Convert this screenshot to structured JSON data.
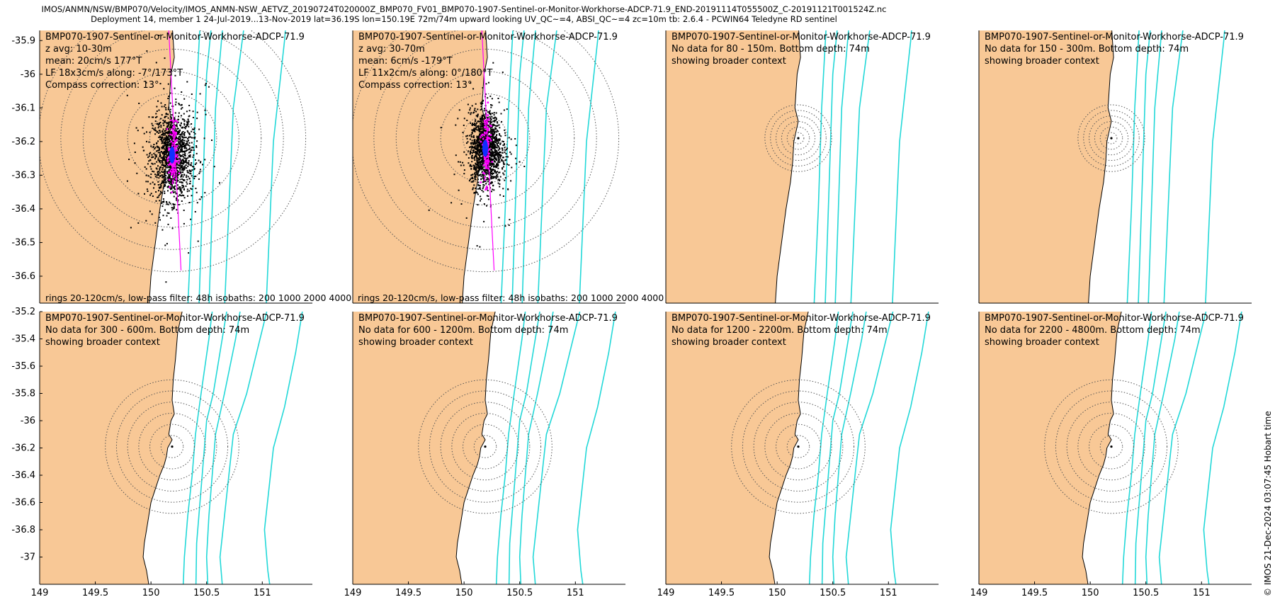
{
  "figure": {
    "title_line1": "IMOS/ANMN/NSW/BMP070/Velocity/IMOS_ANMN-NSW_AETVZ_20190724T020000Z_BMP070_FV01_BMP070-1907-Sentinel-or-Monitor-Workhorse-ADCP-71.9_END-20191114T055500Z_C-20191121T001524Z.nc",
    "title_line2": "Deployment 14, member 1 24-Jul-2019...13-Nov-2019 lat=36.19S lon=150.19E 72m/74m upward looking UV_QC~=4, ABSI_QC~=4 zc=10m tb: 2.6.4 - PCWIN64 Teledyne RD sentinel",
    "footnote": "rings 20-120cm/s, low-pass filter: 48h isobaths: 200 1000 2000 4000",
    "credit": "© IMOS 21-Dec-2024 03:07:45 Hobart time"
  },
  "colors": {
    "land": "#f8c896",
    "sea": "#ffffff",
    "isobath": "#22d8d8",
    "scatter": "#000000",
    "lowpass": "#ff00ff",
    "mean": "#1030ff",
    "ring": "#555555"
  },
  "chart_data": [
    {
      "id": "p1",
      "type": "scatter",
      "xlim": [
        149,
        151.45
      ],
      "ylim": [
        -36.68,
        -35.87
      ],
      "xticks": [],
      "yticks": [
        -35.9,
        -36,
        -36.1,
        -36.2,
        -36.3,
        -36.4,
        -36.5,
        -36.6
      ],
      "center": [
        150.19,
        -36.19
      ],
      "ring_radii_deg": [
        0.2,
        0.4,
        0.6,
        0.8,
        1.0,
        1.2
      ],
      "cloud": {
        "cx": 150.19,
        "cy": -36.24,
        "sx": 0.09,
        "sy": 0.065
      },
      "isobath_scale": 1.0,
      "label_lines": [
        "BMP070-1907-Sentinel-or-Monitor-Workhorse-ADCP-71.9",
        "z avg: 10-30m",
        "mean: 20cm/s 177°T",
        "LF 18x3cm/s along: -7°/173°T",
        "Compass correction: 13°"
      ],
      "has_footnote": true
    },
    {
      "id": "p2",
      "type": "scatter",
      "xlim": [
        149,
        151.45
      ],
      "ylim": [
        -36.68,
        -35.87
      ],
      "xticks": [],
      "yticks": [],
      "center": [
        150.19,
        -36.19
      ],
      "ring_radii_deg": [
        0.2,
        0.4,
        0.6,
        0.8,
        1.0,
        1.2
      ],
      "cloud": {
        "cx": 150.19,
        "cy": -36.22,
        "sx": 0.07,
        "sy": 0.055
      },
      "isobath_scale": 1.0,
      "label_lines": [
        "BMP070-1907-Sentinel-or-Monitor-Workhorse-ADCP-71.9",
        "z avg: 30-70m",
        "mean: 6cm/s -179°T",
        "LF 11x2cm/s along: 0°/180°T",
        "Compass correction: 13°"
      ],
      "has_footnote": true
    },
    {
      "id": "p3",
      "type": "scatter",
      "xlim": [
        149,
        151.45
      ],
      "ylim": [
        -36.68,
        -35.87
      ],
      "xticks": [],
      "yticks": [],
      "center": [
        150.19,
        -36.19
      ],
      "ring_radii_deg": [
        0.05,
        0.1,
        0.15,
        0.2,
        0.25,
        0.3
      ],
      "cloud": null,
      "isobath_scale": 1.0,
      "label_lines": [
        "BMP070-1907-Sentinel-or-Monitor-Workhorse-ADCP-71.9",
        "No data for 80 - 150m. Bottom depth: 74m",
        "showing broader context"
      ],
      "has_footnote": false
    },
    {
      "id": "p4",
      "type": "scatter",
      "xlim": [
        149,
        151.45
      ],
      "ylim": [
        -36.68,
        -35.87
      ],
      "xticks": [],
      "yticks": [],
      "center": [
        150.19,
        -36.19
      ],
      "ring_radii_deg": [
        0.05,
        0.1,
        0.15,
        0.2,
        0.25,
        0.3
      ],
      "cloud": null,
      "isobath_scale": 1.0,
      "label_lines": [
        "BMP070-1907-Sentinel-or-Monitor-Workhorse-ADCP-71.9",
        "No data for 150 - 300m. Bottom depth: 74m",
        "showing broader context"
      ],
      "has_footnote": false
    },
    {
      "id": "p5",
      "type": "scatter",
      "xlim": [
        149,
        151.45
      ],
      "ylim": [
        -37.2,
        -35.2
      ],
      "xticks": [
        149,
        149.5,
        150,
        150.5,
        151
      ],
      "yticks": [
        -35.2,
        -35.4,
        -35.6,
        -35.8,
        -36,
        -36.2,
        -36.4,
        -36.6,
        -36.8,
        -37
      ],
      "center": [
        150.19,
        -36.19
      ],
      "ring_radii_deg": [
        0.1,
        0.2,
        0.3,
        0.4,
        0.5,
        0.6
      ],
      "cloud": null,
      "isobath_scale": 1.0,
      "label_lines": [
        "BMP070-1907-Sentinel-or-Monitor-Workhorse-ADCP-71.9",
        "No data for 300 - 600m. Bottom depth: 74m",
        "showing broader context"
      ],
      "has_footnote": false
    },
    {
      "id": "p6",
      "type": "scatter",
      "xlim": [
        149,
        151.45
      ],
      "ylim": [
        -37.2,
        -35.2
      ],
      "xticks": [
        149,
        149.5,
        150,
        150.5,
        151
      ],
      "yticks": [],
      "center": [
        150.19,
        -36.19
      ],
      "ring_radii_deg": [
        0.1,
        0.2,
        0.3,
        0.4,
        0.5,
        0.6
      ],
      "cloud": null,
      "isobath_scale": 1.0,
      "label_lines": [
        "BMP070-1907-Sentinel-or-Monitor-Workhorse-ADCP-71.9",
        "No data for 600 - 1200m. Bottom depth: 74m",
        "showing broader context"
      ],
      "has_footnote": false
    },
    {
      "id": "p7",
      "type": "scatter",
      "xlim": [
        149,
        151.45
      ],
      "ylim": [
        -37.2,
        -35.2
      ],
      "xticks": [
        149,
        149.5,
        150,
        150.5,
        151
      ],
      "yticks": [],
      "center": [
        150.19,
        -36.19
      ],
      "ring_radii_deg": [
        0.1,
        0.2,
        0.3,
        0.4,
        0.5,
        0.6
      ],
      "cloud": null,
      "isobath_scale": 1.0,
      "label_lines": [
        "BMP070-1907-Sentinel-or-Monitor-Workhorse-ADCP-71.9",
        "No data for 1200 - 2200m. Bottom depth: 74m",
        "showing broader context"
      ],
      "has_footnote": false
    },
    {
      "id": "p8",
      "type": "scatter",
      "xlim": [
        149,
        151.45
      ],
      "ylim": [
        -37.2,
        -35.2
      ],
      "xticks": [
        149,
        149.5,
        150,
        150.5,
        151
      ],
      "yticks": [],
      "center": [
        150.19,
        -36.19
      ],
      "ring_radii_deg": [
        0.1,
        0.2,
        0.3,
        0.4,
        0.5,
        0.6
      ],
      "cloud": null,
      "isobath_scale": 1.0,
      "label_lines": [
        "BMP070-1907-Sentinel-or-Monitor-Workhorse-ADCP-71.9",
        "No data for 2200 - 4800m. Bottom depth: 74m",
        "showing broader context"
      ],
      "has_footnote": false
    }
  ]
}
